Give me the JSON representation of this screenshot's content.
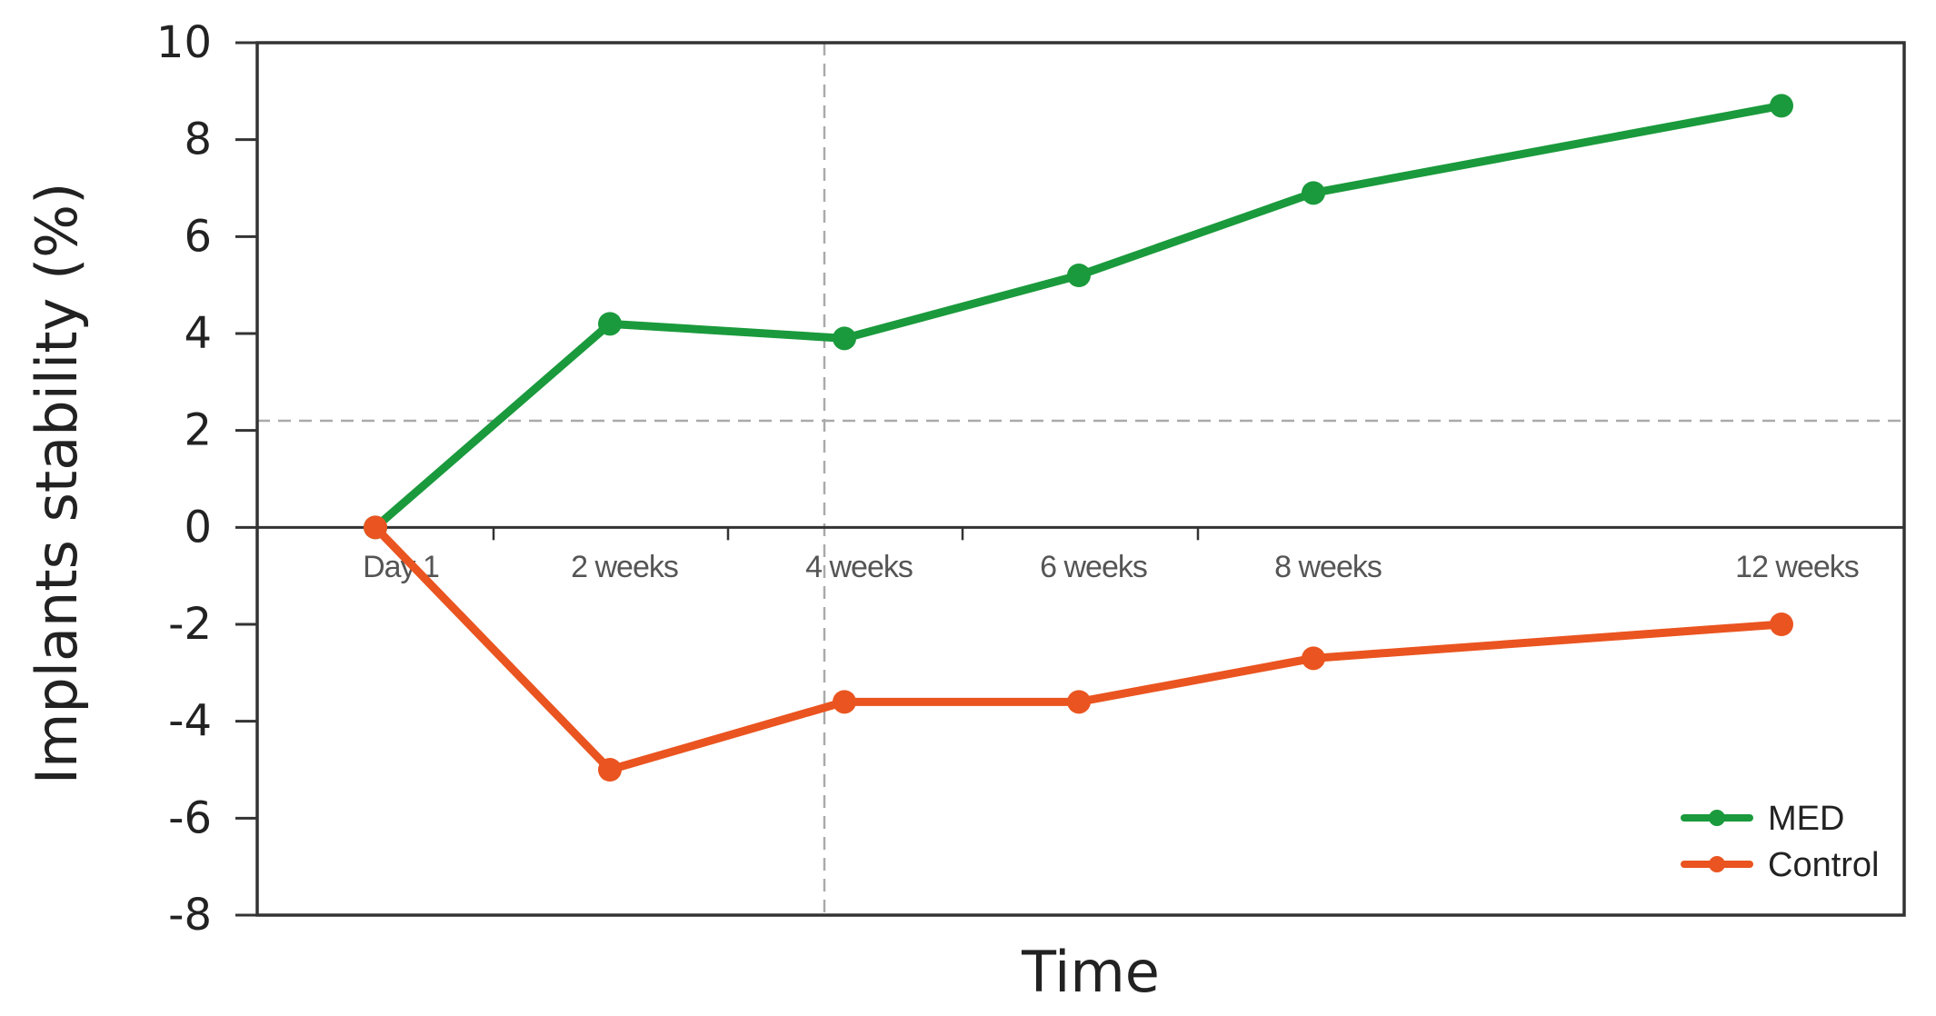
{
  "chart_data": {
    "type": "line",
    "title": "",
    "xlabel": "Time",
    "ylabel": "Implants stability (%)",
    "ylim": [
      -8,
      10
    ],
    "yticks": [
      10,
      8,
      6,
      4,
      2,
      0,
      -2,
      -4,
      -6,
      -8
    ],
    "categories": [
      "Day 1",
      "2 weeks",
      "4 weeks",
      "6 weeks",
      "8 weeks",
      "12 weeks"
    ],
    "series": [
      {
        "name": "MED",
        "color": "#1a9a3c",
        "values": [
          0,
          4.2,
          3.9,
          5.2,
          6.9,
          8.7
        ]
      },
      {
        "name": "Control",
        "color": "#ea5420",
        "values": [
          0,
          -5.0,
          -3.6,
          -3.6,
          -2.7,
          -2.0
        ]
      }
    ],
    "reference_lines": {
      "y": 2.2,
      "x_category": "4 weeks"
    },
    "grid": false,
    "legend_position": "bottom-right"
  }
}
